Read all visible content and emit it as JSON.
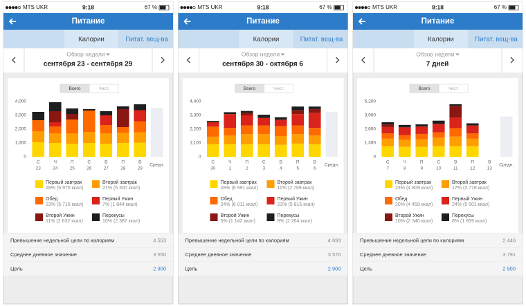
{
  "screens": [
    {
      "status": {
        "carrier": "MTS UKR",
        "time": "9:18",
        "battery": "67 %"
      },
      "header": {
        "title": "Питание"
      },
      "tabs": [
        "Калории",
        "Питат. вещ-ва"
      ],
      "nav": {
        "label": "Обзор недели",
        "period": "сентября 23 - сентября 29"
      },
      "chart": {
        "type": "bar",
        "stacked": true,
        "toggle": [
          "Всего",
          "Чист."
        ],
        "categories": [
          "С",
          "Ч",
          "П",
          "С",
          "В",
          "П",
          "В"
        ],
        "dates": [
          "23",
          "24",
          "25",
          "26",
          "27",
          "28",
          "29"
        ],
        "average_label": "Средн.",
        "average": 3550,
        "ylim": [
          0,
          4000
        ],
        "yticks": [
          0,
          {
            "value": 1000,
            "label": "1,000"
          },
          {
            "value": 2000,
            "label": "2,000"
          },
          {
            "value": 3000,
            "label": "3,000"
          },
          {
            "value": 4000,
            "label": "4,000"
          }
        ],
        "series": [
          {
            "name": "Первый завтрак",
            "color": "#ffd700",
            "share_label": "28% (6 975 ккал)",
            "values": [
              1050,
              1000,
              950,
              1000,
              950,
              1000,
              1025
            ]
          },
          {
            "name": "Второй завтрак",
            "color": "#ff9e00",
            "share_label": "21% (5 300 ккал)",
            "values": [
              800,
              700,
              750,
              800,
              750,
              750,
              750
            ]
          },
          {
            "name": "Обед",
            "color": "#ff6a00",
            "share_label": "23% (5 716 ккал)",
            "values": [
              800,
              500,
              1000,
              1550,
              600,
              400,
              800
            ]
          },
          {
            "name": "Первый Ужин",
            "color": "#d9231b",
            "share_label": "7% (1 844 ккал)",
            "values": [
              0,
              300,
              0,
              0,
              700,
              0,
              800
            ]
          },
          {
            "name": "Второй Ужин",
            "color": "#8a1712",
            "share_label": "11% (2 632 ккал)",
            "values": [
              0,
              800,
              400,
              0,
              0,
              1300,
              0
            ]
          },
          {
            "name": "Перекусы",
            "color": "#1e1e1e",
            "share_label": "10% (2 387 ккал)",
            "values": [
              600,
              650,
              400,
              100,
              300,
              200,
              425
            ]
          }
        ]
      },
      "stats": [
        {
          "label": "Превышение недельной цели по калориям",
          "value": "4 553"
        },
        {
          "label": "Среднее дневное значение",
          "value": "3 550"
        },
        {
          "label": "Цель",
          "value": "2 900"
        }
      ]
    },
    {
      "status": {
        "carrier": "MTS UKR",
        "time": "9:18",
        "battery": "67 %"
      },
      "header": {
        "title": "Питание"
      },
      "tabs": [
        "Калории",
        "Питат. вещ-ва"
      ],
      "nav": {
        "label": "Обзор недели",
        "period": "сентября 30 - октября 6"
      },
      "chart": {
        "type": "bar",
        "stacked": true,
        "toggle": [
          "Всего",
          "Чист."
        ],
        "categories": [
          "С",
          "Ч",
          "П",
          "С",
          "В",
          "П",
          "В"
        ],
        "dates": [
          "30",
          "1",
          "2",
          "3",
          "4",
          "5",
          "6"
        ],
        "average_label": "Средн.",
        "average": 3570,
        "ylim": [
          0,
          4400
        ],
        "yticks": [
          0,
          {
            "value": 1100,
            "label": "1,100"
          },
          {
            "value": 2200,
            "label": "2,200"
          },
          {
            "value": 3300,
            "label": "3,300"
          },
          {
            "value": 4400,
            "label": "4,400"
          }
        ],
        "series": [
          {
            "name": "Первый завтрак",
            "color": "#ffd700",
            "share_label": "28% (6 991 ккал)",
            "values": [
              1000,
              1000,
              1000,
              1000,
              950,
              1050,
              1000
            ]
          },
          {
            "name": "Второй завтрак",
            "color": "#ff9e00",
            "share_label": "11% (2 769 ккал)",
            "values": [
              600,
              700,
              800,
              800,
              700,
              750,
              700
            ]
          },
          {
            "name": "Обед",
            "color": "#ff6a00",
            "share_label": "24% (6 011 ккал)",
            "values": [
              800,
              600,
              700,
              700,
              800,
              700,
              600
            ]
          },
          {
            "name": "Первый Ужин",
            "color": "#d9231b",
            "share_label": "23% (5 815 ккал)",
            "values": [
              350,
              1100,
              800,
              600,
              500,
              900,
              1200
            ]
          },
          {
            "name": "Второй Ужин",
            "color": "#8a1712",
            "share_label": "5% (1 142 ккал)",
            "values": [
              0,
              0,
              200,
              0,
              0,
              300,
              300
            ]
          },
          {
            "name": "Перекусы",
            "color": "#1e1e1e",
            "share_label": "9% (2 264 ккал)",
            "values": [
              100,
              150,
              150,
              250,
              200,
              300,
              200
            ]
          }
        ]
      },
      "stats": [
        {
          "label": "Превышение недельной цели по калориям",
          "value": "4 693"
        },
        {
          "label": "Среднее дневное значение",
          "value": "3 570"
        },
        {
          "label": "Цель",
          "value": "2 900"
        }
      ]
    },
    {
      "status": {
        "carrier": "MTS UKR",
        "time": "9:18",
        "battery": "67 %"
      },
      "header": {
        "title": "Питание"
      },
      "tabs": [
        "Калории",
        "Питат. вещ-ва"
      ],
      "nav": {
        "label": "Обзор недели",
        "period": "7 дней"
      },
      "chart": {
        "type": "bar",
        "stacked": true,
        "toggle": [
          "Всего",
          "Чист."
        ],
        "categories": [
          "С",
          "Ч",
          "П",
          "С",
          "В",
          "П",
          "В"
        ],
        "dates": [
          "7",
          "8",
          "9",
          "10",
          "11",
          "12",
          "13"
        ],
        "average_label": "Средн.",
        "average": 3791,
        "ylim": [
          0,
          5200
        ],
        "yticks": [
          0,
          {
            "value": 1300,
            "label": "1,300"
          },
          {
            "value": 2600,
            "label": "2,600"
          },
          {
            "value": 3900,
            "label": "3,900"
          },
          {
            "value": 5200,
            "label": "5,200"
          }
        ],
        "series": [
          {
            "name": "Первый завтрак",
            "color": "#ffd700",
            "share_label": "23% (4 809 ккал)",
            "values": [
              1000,
              950,
              950,
              1000,
              1000,
              1000,
              null
            ]
          },
          {
            "name": "Второй завтрак",
            "color": "#ff9e00",
            "share_label": "17% (3 778 ккал)",
            "values": [
              700,
              650,
              700,
              800,
              900,
              700,
              null
            ]
          },
          {
            "name": "Обед",
            "color": "#ff6a00",
            "share_label": "20% (4 459 ккал)",
            "values": [
              500,
              450,
              500,
              500,
              800,
              500,
              null
            ]
          },
          {
            "name": "Первый Ужин",
            "color": "#d9231b",
            "share_label": "24% (5 501 ккал)",
            "values": [
              600,
              700,
              700,
              800,
              1000,
              750,
              null
            ]
          },
          {
            "name": "Второй Ужин",
            "color": "#8a1712",
            "share_label": "10% (2 340 ккал)",
            "values": [
              250,
              50,
              0,
              0,
              1100,
              0,
              null
            ]
          },
          {
            "name": "Перекусы",
            "color": "#1e1e1e",
            "share_label": "8% (1 659 ккал)",
            "values": [
              200,
              200,
              200,
              300,
              150,
              200,
              null
            ]
          }
        ]
      },
      "stats": [
        {
          "label": "Превышение недельной цели по калориям",
          "value": "2 446"
        },
        {
          "label": "Среднее дневное значение",
          "value": "3 791"
        },
        {
          "label": "Цель",
          "value": "2 900"
        }
      ]
    }
  ]
}
